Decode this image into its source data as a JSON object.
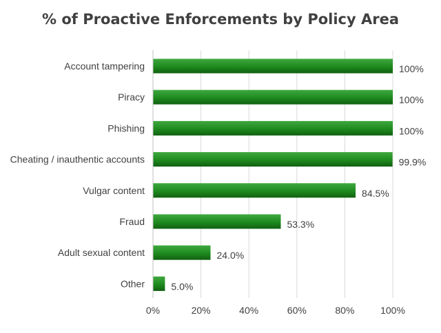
{
  "chart_data": {
    "type": "bar",
    "orientation": "horizontal",
    "title": "% of Proactive Enforcements by Policy Area",
    "xlabel": "",
    "ylabel": "",
    "xlim": [
      0,
      100
    ],
    "grid": true,
    "categories": [
      "Account tampering",
      "Piracy",
      "Phishing",
      "Cheating / inauthentic accounts",
      "Vulgar content",
      "Fraud",
      "Adult sexual content",
      "Other"
    ],
    "values": [
      100,
      100,
      100,
      99.9,
      84.5,
      53.3,
      24.0,
      5.0
    ],
    "data_labels": [
      "100%",
      "100%",
      "100%",
      "99.9%",
      "84.5%",
      "53.3%",
      "24.0%",
      "5.0%"
    ],
    "x_ticks": [
      0,
      20,
      40,
      60,
      80,
      100
    ],
    "x_tick_labels": [
      "0%",
      "20%",
      "40%",
      "60%",
      "80%",
      "100%"
    ],
    "colors": {
      "bar_light": "#3fa83f",
      "bar_mid": "#1e8a1e",
      "bar_dark": "#106010"
    }
  }
}
